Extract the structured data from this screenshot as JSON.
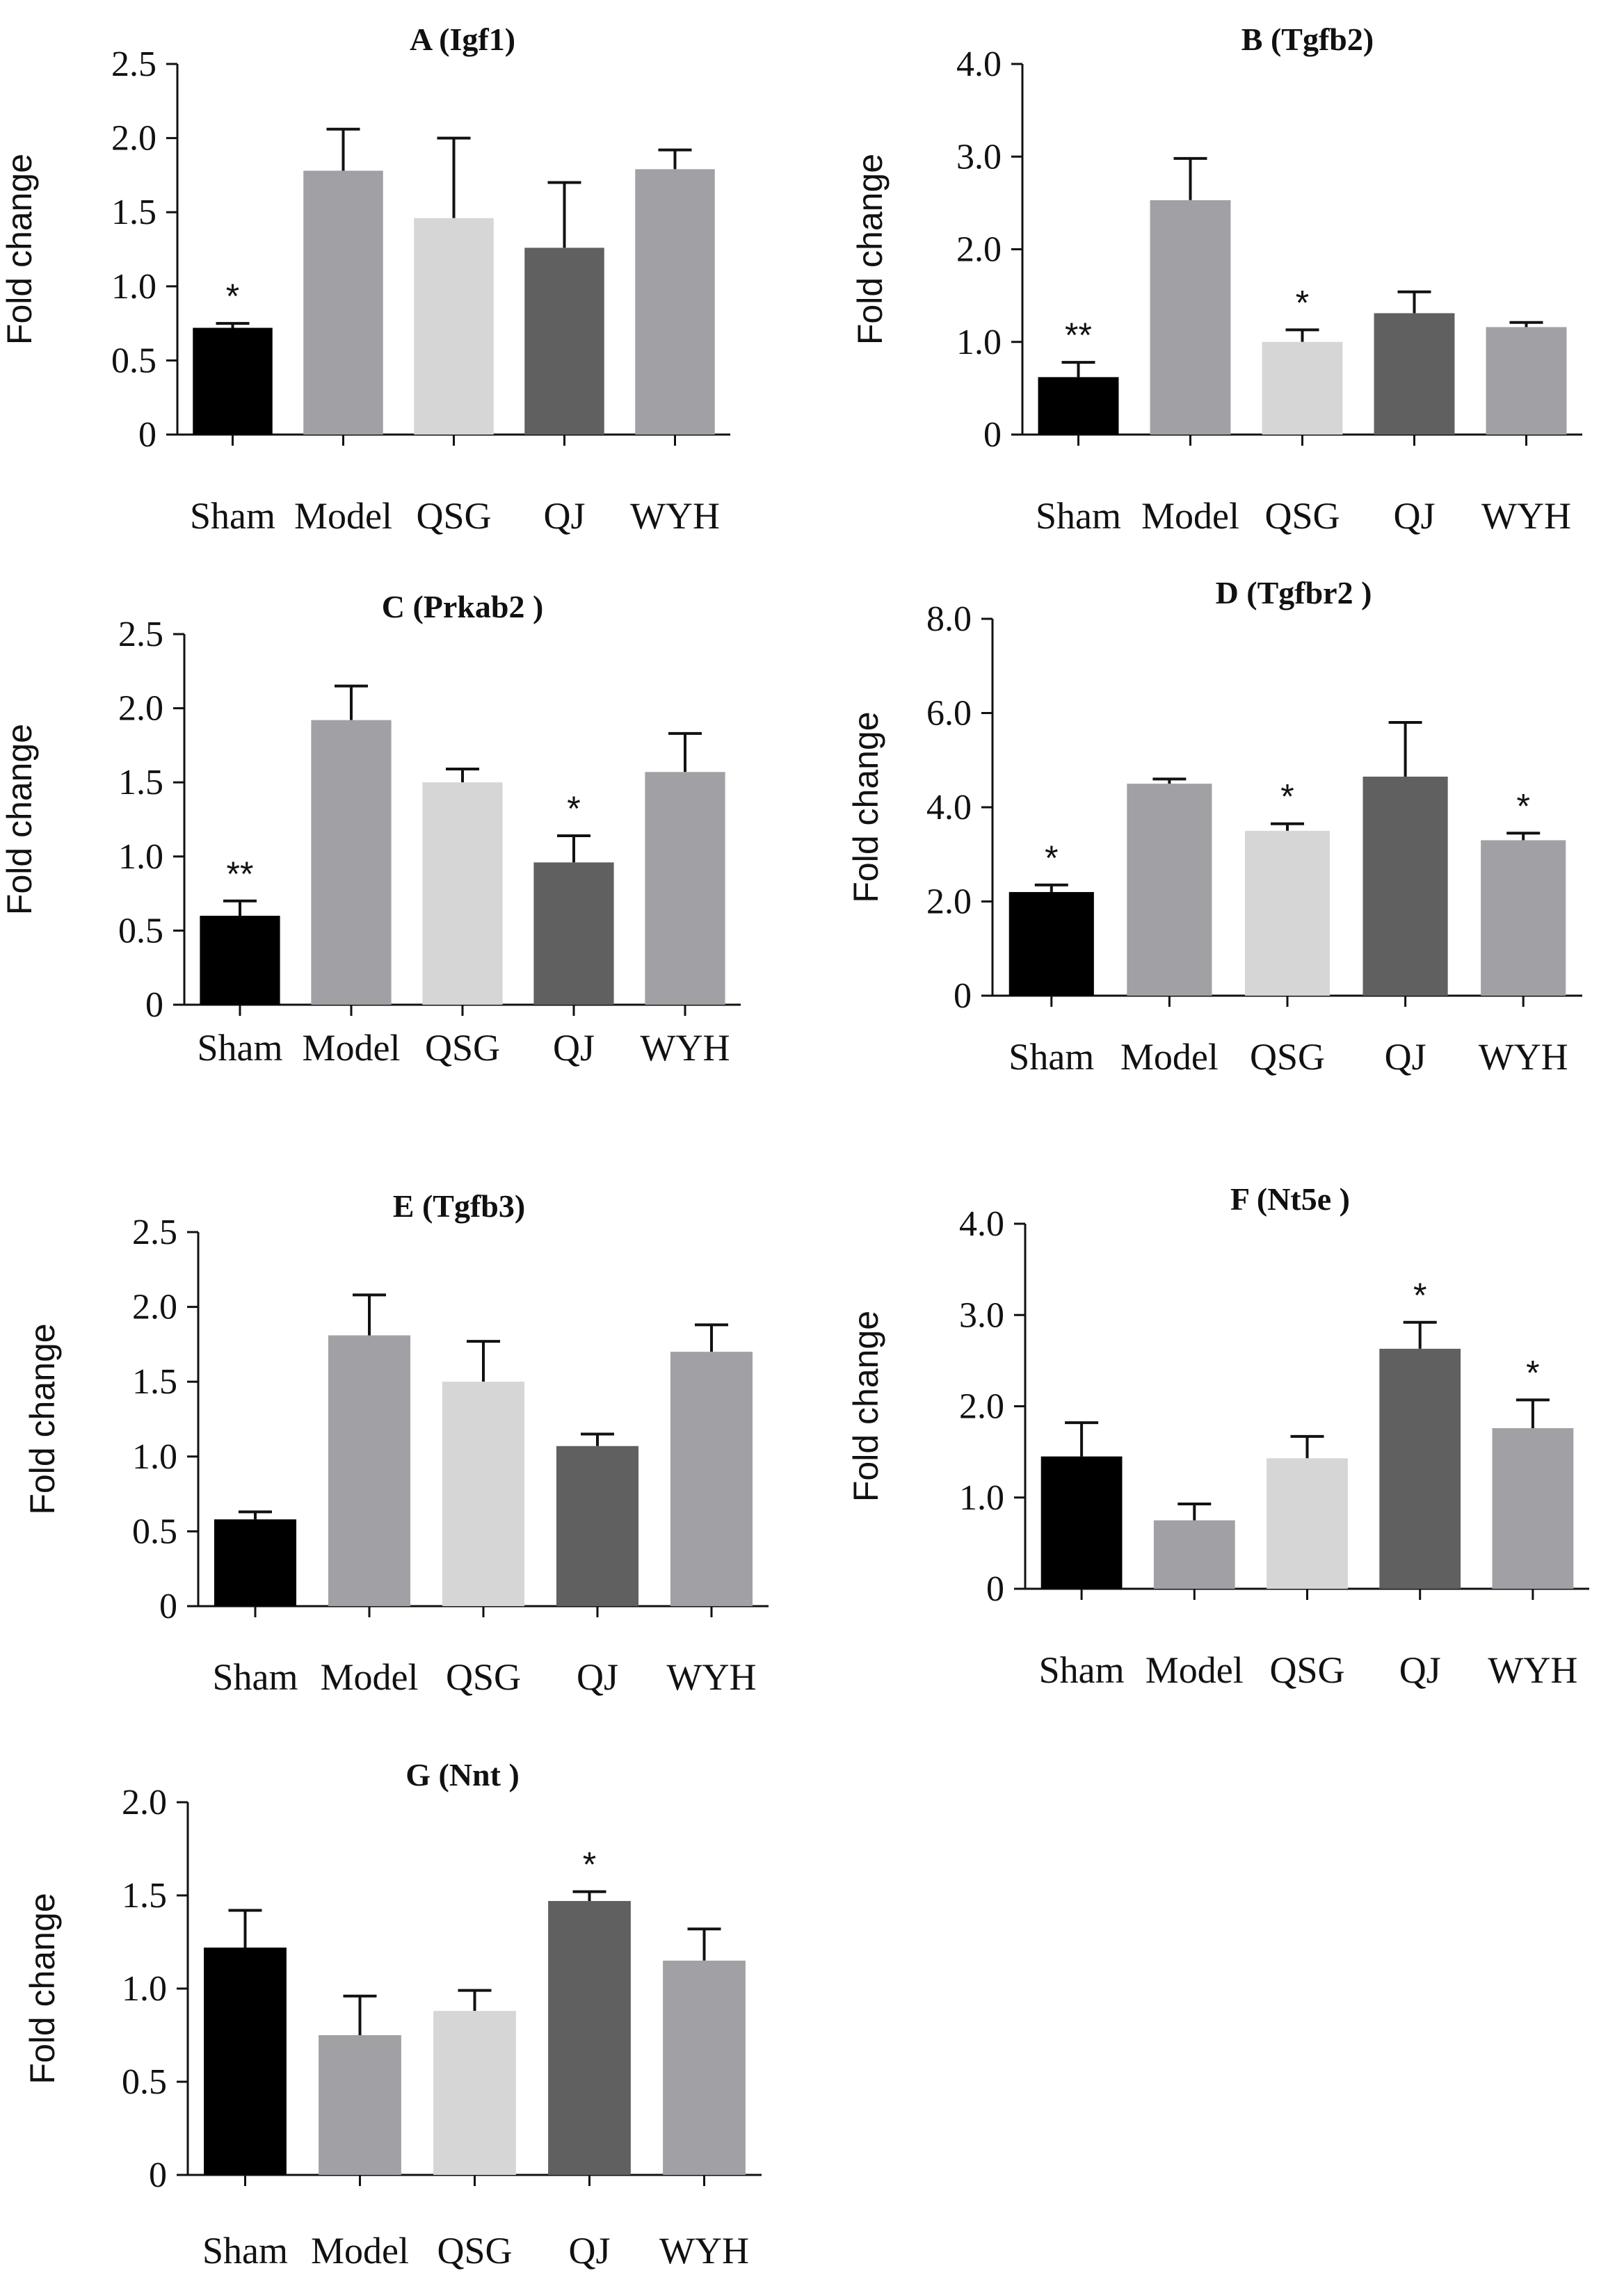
{
  "colors": {
    "Sham": "#000000",
    "Model": "#a1a0a5",
    "QSG": "#d6d6d6",
    "QJ": "#606060",
    "WYH": "#a1a0a5",
    "axis": "#111111"
  },
  "chart_data": [
    {
      "id": "A",
      "type": "bar",
      "title": "A (Igf1)",
      "xlabel": "",
      "ylabel": "Fold change",
      "categories": [
        "Sham",
        "Model",
        "QSG",
        "QJ",
        "WYH"
      ],
      "values": [
        0.72,
        1.78,
        1.46,
        1.26,
        1.79
      ],
      "errors": [
        0.03,
        0.28,
        0.54,
        0.44,
        0.13
      ],
      "significance": [
        "*",
        "",
        "",
        "",
        ""
      ],
      "ylim": [
        0,
        2.5
      ],
      "yticks": [
        0,
        0.5,
        1.0,
        1.5,
        2.0,
        2.5
      ],
      "ytick_labels": [
        "0",
        "0.5",
        "1.0",
        "1.5",
        "2.0",
        "2.5"
      ],
      "grid": false
    },
    {
      "id": "B",
      "type": "bar",
      "title": "B (Tgfb2)",
      "xlabel": "",
      "ylabel": "Fold change",
      "categories": [
        "Sham",
        "Model",
        "QSG",
        "QJ",
        "WYH"
      ],
      "values": [
        0.62,
        2.53,
        1.0,
        1.31,
        1.16
      ],
      "errors": [
        0.16,
        0.45,
        0.13,
        0.23,
        0.05
      ],
      "significance": [
        "**",
        "",
        "*",
        "",
        ""
      ],
      "ylim": [
        0,
        4.0
      ],
      "yticks": [
        0,
        1.0,
        2.0,
        3.0,
        4.0
      ],
      "ytick_labels": [
        "0",
        "1.0",
        "2.0",
        "3.0",
        "4.0"
      ],
      "grid": false
    },
    {
      "id": "C",
      "type": "bar",
      "title": "C (Prkab2 )",
      "xlabel": "",
      "ylabel": "Fold change",
      "categories": [
        "Sham",
        "Model",
        "QSG",
        "QJ",
        "WYH"
      ],
      "values": [
        0.6,
        1.92,
        1.5,
        0.96,
        1.57
      ],
      "errors": [
        0.1,
        0.23,
        0.09,
        0.18,
        0.26
      ],
      "significance": [
        "**",
        "",
        "",
        "*",
        ""
      ],
      "ylim": [
        0,
        2.5
      ],
      "yticks": [
        0,
        0.5,
        1.0,
        1.5,
        2.0,
        2.5
      ],
      "ytick_labels": [
        "0",
        "0.5",
        "1.0",
        "1.5",
        "2.0",
        "2.5"
      ],
      "grid": false
    },
    {
      "id": "D",
      "type": "bar",
      "title": "D (Tgfbr2 )",
      "xlabel": "",
      "ylabel": "Fold change",
      "categories": [
        "Sham",
        "Model",
        "QSG",
        "QJ",
        "WYH"
      ],
      "values": [
        2.2,
        4.5,
        3.5,
        4.65,
        3.3
      ],
      "errors": [
        0.15,
        0.1,
        0.15,
        1.15,
        0.15
      ],
      "significance": [
        "*",
        "",
        "*",
        "",
        "*"
      ],
      "ylim": [
        0,
        8.0
      ],
      "yticks": [
        0,
        2.0,
        4.0,
        6.0,
        8.0
      ],
      "ytick_labels": [
        "0",
        "2.0",
        "4.0",
        "6.0",
        "8.0"
      ],
      "grid": false
    },
    {
      "id": "E",
      "type": "bar",
      "title": "E (Tgfb3)",
      "xlabel": "",
      "ylabel": "Fold change",
      "categories": [
        "Sham",
        "Model",
        "QSG",
        "QJ",
        "WYH"
      ],
      "values": [
        0.58,
        1.81,
        1.5,
        1.07,
        1.7
      ],
      "errors": [
        0.05,
        0.27,
        0.27,
        0.08,
        0.18
      ],
      "significance": [
        "",
        "",
        "",
        "",
        ""
      ],
      "ylim": [
        0,
        2.5
      ],
      "yticks": [
        0,
        0.5,
        1.0,
        1.5,
        2.0,
        2.5
      ],
      "ytick_labels": [
        "0",
        "0.5",
        "1.0",
        "1.5",
        "2.0",
        "2.5"
      ],
      "grid": false
    },
    {
      "id": "F",
      "type": "bar",
      "title": "F (Nt5e )",
      "xlabel": "",
      "ylabel": "Fold change",
      "categories": [
        "Sham",
        "Model",
        "QSG",
        "QJ",
        "WYH"
      ],
      "values": [
        1.45,
        0.75,
        1.43,
        2.63,
        1.76
      ],
      "errors": [
        0.37,
        0.18,
        0.24,
        0.29,
        0.31
      ],
      "significance": [
        "",
        "",
        "",
        "*",
        "*"
      ],
      "ylim": [
        0,
        4.0
      ],
      "yticks": [
        0,
        1.0,
        2.0,
        3.0,
        4.0
      ],
      "ytick_labels": [
        "0",
        "1.0",
        "2.0",
        "3.0",
        "4.0"
      ],
      "grid": false
    },
    {
      "id": "G",
      "type": "bar",
      "title": "G (Nnt )",
      "xlabel": "",
      "ylabel": "Fold change",
      "categories": [
        "Sham",
        "Model",
        "QSG",
        "QJ",
        "WYH"
      ],
      "values": [
        1.22,
        0.75,
        0.88,
        1.47,
        1.15
      ],
      "errors": [
        0.2,
        0.21,
        0.11,
        0.05,
        0.17
      ],
      "significance": [
        "",
        "",
        "",
        "*",
        ""
      ],
      "ylim": [
        0,
        2.0
      ],
      "yticks": [
        0,
        0.5,
        1.0,
        1.5,
        2.0
      ],
      "ytick_labels": [
        "0",
        "0.5",
        "1.0",
        "1.5",
        "2.0"
      ],
      "grid": false
    }
  ]
}
